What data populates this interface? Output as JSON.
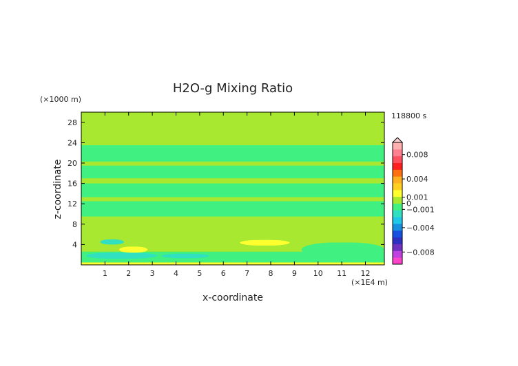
{
  "chart_data": {
    "type": "heatmap",
    "title": "H2O-g Mixing Ratio",
    "xlabel": "x-coordinate",
    "ylabel": "z-coordinate",
    "x_unit_label": "(×1E4 m)",
    "y_unit_label": "(×1000 m)",
    "time_label": "118800 s",
    "xlim": [
      0,
      12.8
    ],
    "ylim": [
      0,
      30
    ],
    "xticks": [
      1,
      2,
      3,
      4,
      5,
      6,
      7,
      8,
      9,
      10,
      11,
      12
    ],
    "yticks": [
      4,
      8,
      12,
      16,
      20,
      24,
      28
    ],
    "colorbar": {
      "range": [
        -0.01,
        0.01
      ],
      "tick_values": [
        0.008,
        0.004,
        0.001,
        0,
        -0.001,
        -0.004,
        -0.008
      ],
      "tick_labels": [
        "0.008",
        "0.004",
        "0.001",
        "0",
        "−0.001",
        "−0.004",
        "−0.008"
      ],
      "colors": [
        "#ff44cc",
        "#c040e0",
        "#7030c0",
        "#3030c0",
        "#1850e0",
        "#1890e0",
        "#20c8e8",
        "#30e0c0",
        "#40f080",
        "#a8e830",
        "#ffff30",
        "#ffd020",
        "#ffb020",
        "#ff7010",
        "#ff2020",
        "#ff5060",
        "#ff8090",
        "#ffb0b0"
      ]
    },
    "background_value": 0.0002,
    "features": [
      {
        "x": [
          0,
          12.8
        ],
        "z": [
          0,
          0.45
        ],
        "value": 0.0012
      },
      {
        "x": [
          0,
          12.8
        ],
        "z": [
          0.5,
          2.6
        ],
        "value": -0.0007
      },
      {
        "x": [
          0.2,
          3.2
        ],
        "z": [
          1.2,
          2.4
        ],
        "value": -0.0022
      },
      {
        "x": [
          3.4,
          5.4
        ],
        "z": [
          1.3,
          2.2
        ],
        "value": -0.002
      },
      {
        "x": [
          9.3,
          12.8
        ],
        "z": [
          1.6,
          4.4
        ],
        "value": -0.0008
      },
      {
        "x": [
          0.8,
          1.8
        ],
        "z": [
          4.0,
          5.0
        ],
        "value": -0.0015
      },
      {
        "x": [
          1.6,
          2.8
        ],
        "z": [
          2.4,
          3.6
        ],
        "value": 0.0012
      },
      {
        "x": [
          3.6,
          5.0
        ],
        "z": [
          3.7,
          4.8
        ],
        "value": 0.0011
      },
      {
        "x": [
          6.7,
          8.8
        ],
        "z": [
          3.8,
          4.9
        ],
        "value": 0.0012
      },
      {
        "x": [
          5.8,
          6.8
        ],
        "z": [
          7.2,
          8.2
        ],
        "value": 0.0011
      },
      {
        "x": [
          0,
          12.8
        ],
        "z": [
          9.5,
          12.5
        ],
        "value": -0.0004
      },
      {
        "x": [
          0,
          12.8
        ],
        "z": [
          13.3,
          16.0
        ],
        "value": -0.0004
      },
      {
        "x": [
          0,
          12.8
        ],
        "z": [
          17.0,
          19.5
        ],
        "value": -0.0004
      },
      {
        "x": [
          0,
          12.8
        ],
        "z": [
          20.3,
          23.5
        ],
        "value": -0.0004
      }
    ]
  }
}
